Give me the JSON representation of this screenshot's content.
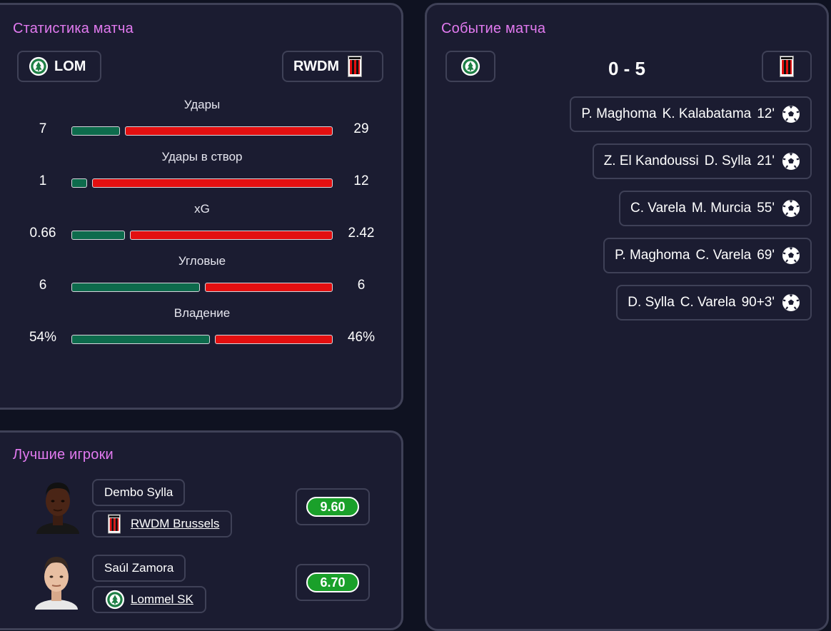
{
  "colors": {
    "accent_title": "#e27af0",
    "home_bar": "#0d6b4c",
    "away_bar": "#e30f10",
    "rating_green": "#1aa02a",
    "panel_bg": "#1b1c31",
    "panel_border": "#3f4157"
  },
  "stats_panel": {
    "title": "Статистика матча",
    "home_team": {
      "name": "LOM",
      "logo_icon": "lommel-crest-icon"
    },
    "away_team": {
      "name": "RWDM",
      "logo_icon": "rwdm-crest-icon"
    },
    "stats": [
      {
        "label": "Удары",
        "home": "7",
        "away": "29",
        "home_share": 0.19,
        "away_share": 0.81
      },
      {
        "label": "Удары в створ",
        "home": "1",
        "away": "12",
        "home_share": 0.06,
        "away_share": 0.94
      },
      {
        "label": "xG",
        "home": "0.66",
        "away": "2.42",
        "home_share": 0.21,
        "away_share": 0.79
      },
      {
        "label": "Угловые",
        "home": "6",
        "away": "6",
        "home_share": 0.5,
        "away_share": 0.5
      },
      {
        "label": "Владение",
        "home": "54%",
        "away": "46%",
        "home_share": 0.54,
        "away_share": 0.46
      }
    ]
  },
  "events_panel": {
    "title": "Событие матча",
    "score": "0 - 5",
    "events": [
      {
        "scorer": "P. Maghoma",
        "assist": "K. Kalabatama",
        "minute": "12'",
        "icon": "soccer-ball-icon"
      },
      {
        "scorer": "Z. El Kandoussi",
        "assist": "D. Sylla",
        "minute": "21'",
        "icon": "soccer-ball-icon"
      },
      {
        "scorer": "C. Varela",
        "assist": "M. Murcia",
        "minute": "55'",
        "icon": "soccer-ball-icon"
      },
      {
        "scorer": "P. Maghoma",
        "assist": "C. Varela",
        "minute": "69'",
        "icon": "soccer-ball-icon"
      },
      {
        "scorer": "D. Sylla",
        "assist": "C. Varela",
        "minute": "90+3'",
        "icon": "soccer-ball-icon"
      }
    ]
  },
  "players_panel": {
    "title": "Лучшие игроки",
    "players": [
      {
        "name": "Dembo Sylla",
        "club": "RWDM Brussels",
        "club_icon": "rwdm-crest-icon",
        "rating": "9.60"
      },
      {
        "name": "Saúl Zamora",
        "club": "Lommel SK",
        "club_icon": "lommel-crest-icon",
        "rating": "6.70"
      }
    ]
  }
}
